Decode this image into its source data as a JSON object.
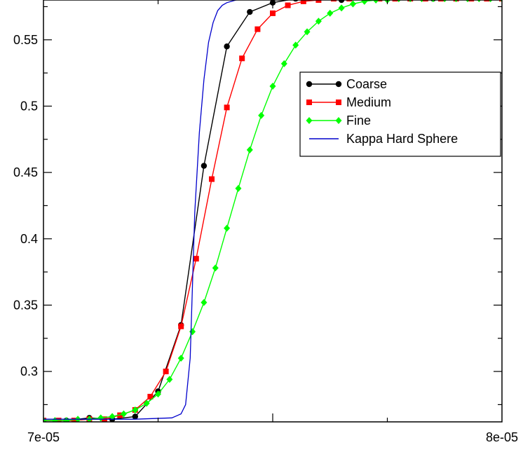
{
  "chart_data": {
    "type": "line",
    "title": "",
    "xlabel": "",
    "ylabel": "",
    "xlim": [
      7e-05,
      8e-05
    ],
    "ylim": [
      0.262,
      0.58
    ],
    "x_ticks": [
      {
        "value": 7e-05,
        "label": "7e-05"
      },
      {
        "value": 8e-05,
        "label": "8e-05"
      }
    ],
    "x_minor_ticks": [
      7.5e-05
    ],
    "y_ticks": [
      {
        "value": 0.3,
        "label": "0.3"
      },
      {
        "value": 0.35,
        "label": "0.35"
      },
      {
        "value": 0.4,
        "label": "0.4"
      },
      {
        "value": 0.45,
        "label": "0.45"
      },
      {
        "value": 0.5,
        "label": "0.5"
      },
      {
        "value": 0.55,
        "label": "0.55"
      }
    ],
    "grid": false,
    "legend_position": "right",
    "series": [
      {
        "name": "Coarse",
        "color": "#000000",
        "marker": "circle",
        "x": [
          7e-05,
          7.05e-05,
          7.1e-05,
          7.15e-05,
          7.2e-05,
          7.25e-05,
          7.3e-05,
          7.35e-05,
          7.4e-05,
          7.45e-05,
          7.5e-05,
          7.55e-05,
          7.6e-05,
          7.65e-05,
          7.7e-05,
          7.75e-05,
          7.8e-05,
          7.85e-05,
          7.9e-05,
          7.95e-05,
          8e-05
        ],
        "y": [
          0.263,
          0.263,
          0.265,
          0.264,
          0.266,
          0.285,
          0.335,
          0.455,
          0.545,
          0.571,
          0.578,
          0.581,
          0.581,
          0.58,
          0.581,
          0.582,
          0.581,
          0.581,
          0.581,
          0.583,
          0.581
        ]
      },
      {
        "name": "Medium",
        "color": "#ff0000",
        "marker": "square",
        "x": [
          7e-05,
          7.033e-05,
          7.067e-05,
          7.1e-05,
          7.133e-05,
          7.167e-05,
          7.2e-05,
          7.233e-05,
          7.267e-05,
          7.3e-05,
          7.333e-05,
          7.367e-05,
          7.4e-05,
          7.433e-05,
          7.467e-05,
          7.5e-05,
          7.533e-05,
          7.567e-05,
          7.6e-05,
          7.633e-05,
          7.667e-05,
          7.7e-05,
          7.733e-05,
          7.767e-05,
          7.8e-05,
          7.833e-05,
          7.867e-05,
          7.9e-05,
          7.933e-05,
          7.967e-05,
          8e-05
        ],
        "y": [
          0.263,
          0.263,
          0.263,
          0.264,
          0.264,
          0.267,
          0.271,
          0.281,
          0.3,
          0.334,
          0.385,
          0.445,
          0.499,
          0.536,
          0.558,
          0.57,
          0.576,
          0.579,
          0.58,
          0.581,
          0.581,
          0.581,
          0.581,
          0.581,
          0.581,
          0.581,
          0.581,
          0.581,
          0.581,
          0.581,
          0.581
        ]
      },
      {
        "name": "Fine",
        "color": "#00ff00",
        "marker": "diamond",
        "x": [
          7e-05,
          7.025e-05,
          7.05e-05,
          7.075e-05,
          7.1e-05,
          7.125e-05,
          7.15e-05,
          7.175e-05,
          7.2e-05,
          7.225e-05,
          7.25e-05,
          7.275e-05,
          7.3e-05,
          7.325e-05,
          7.35e-05,
          7.375e-05,
          7.4e-05,
          7.425e-05,
          7.45e-05,
          7.475e-05,
          7.5e-05,
          7.525e-05,
          7.55e-05,
          7.575e-05,
          7.6e-05,
          7.625e-05,
          7.65e-05,
          7.675e-05,
          7.7e-05,
          7.725e-05,
          7.75e-05,
          7.775e-05,
          7.8e-05,
          7.825e-05,
          7.85e-05,
          7.875e-05,
          7.9e-05,
          7.925e-05,
          7.95e-05,
          7.975e-05,
          8e-05
        ],
        "y": [
          0.263,
          0.263,
          0.263,
          0.264,
          0.264,
          0.265,
          0.266,
          0.268,
          0.271,
          0.276,
          0.283,
          0.294,
          0.31,
          0.33,
          0.352,
          0.378,
          0.408,
          0.438,
          0.467,
          0.493,
          0.515,
          0.532,
          0.546,
          0.556,
          0.564,
          0.57,
          0.574,
          0.577,
          0.579,
          0.58,
          0.58,
          0.581,
          0.581,
          0.581,
          0.581,
          0.581,
          0.581,
          0.581,
          0.581,
          0.581,
          0.581
        ]
      },
      {
        "name": "Kappa Hard Sphere",
        "color": "#0000cc",
        "marker": "none",
        "x": [
          7e-05,
          7.2e-05,
          7.28e-05,
          7.3e-05,
          7.31e-05,
          7.32e-05,
          7.33e-05,
          7.34e-05,
          7.35e-05,
          7.36e-05,
          7.37e-05,
          7.38e-05,
          7.39e-05,
          7.4e-05,
          7.42e-05,
          7.45e-05,
          7.5e-05,
          8e-05
        ],
        "y": [
          0.264,
          0.264,
          0.265,
          0.268,
          0.275,
          0.31,
          0.42,
          0.48,
          0.52,
          0.548,
          0.563,
          0.572,
          0.576,
          0.578,
          0.58,
          0.581,
          0.581,
          0.581
        ]
      }
    ]
  }
}
